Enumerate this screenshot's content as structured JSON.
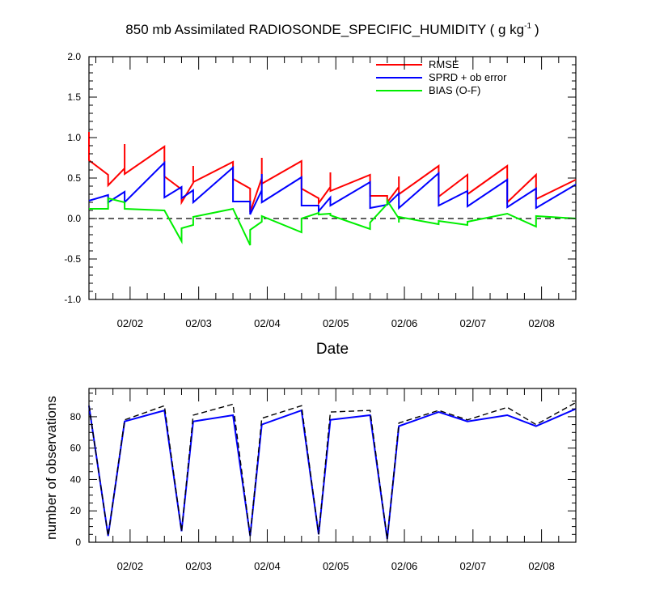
{
  "chart_data": [
    {
      "type": "line",
      "title": "850 mb Assimilated RADIOSONDE_SPECIFIC_HUMIDITY ( g kg",
      "title_unit_exponent": "-1",
      "title_close": ")",
      "xlabel": "Date",
      "ylabel": "",
      "xlim": [
        1.4,
        8.5
      ],
      "ylim": [
        -1.0,
        2.0
      ],
      "xticks": [
        {
          "x": 2,
          "label": "02/02"
        },
        {
          "x": 3,
          "label": "02/03"
        },
        {
          "x": 4,
          "label": "02/04"
        },
        {
          "x": 5,
          "label": "02/05"
        },
        {
          "x": 6,
          "label": "02/06"
        },
        {
          "x": 7,
          "label": "02/07"
        },
        {
          "x": 8,
          "label": "02/08"
        }
      ],
      "yticks": [
        {
          "y": -1.0,
          "label": "-1.0"
        },
        {
          "y": -0.5,
          "label": "-0.5"
        },
        {
          "y": 0.0,
          "label": "0.0"
        },
        {
          "y": 0.5,
          "label": "0.5"
        },
        {
          "y": 1.0,
          "label": "1.0"
        },
        {
          "y": 1.5,
          "label": "1.5"
        },
        {
          "y": 2.0,
          "label": "2.0"
        }
      ],
      "legend_position": "top-right",
      "zero_line": true,
      "series": [
        {
          "name": "RMSE",
          "color": "#ff0000",
          "points": [
            [
              1.4,
              1.07
            ],
            [
              1.4,
              0.72
            ],
            [
              1.68,
              0.54
            ],
            [
              1.68,
              0.41
            ],
            [
              1.92,
              0.62
            ],
            [
              1.92,
              0.92
            ],
            [
              1.92,
              0.55
            ],
            [
              2.5,
              0.89
            ],
            [
              2.5,
              0.52
            ],
            [
              2.75,
              0.36
            ],
            [
              2.75,
              0.2
            ],
            [
              2.92,
              0.44
            ],
            [
              2.92,
              0.65
            ],
            [
              2.92,
              0.45
            ],
            [
              3.5,
              0.7
            ],
            [
              3.5,
              0.49
            ],
            [
              3.75,
              0.37
            ],
            [
              3.75,
              0.08
            ],
            [
              3.92,
              0.5
            ],
            [
              3.92,
              0.75
            ],
            [
              3.92,
              0.43
            ],
            [
              4.5,
              0.71
            ],
            [
              4.5,
              0.37
            ],
            [
              4.75,
              0.25
            ],
            [
              4.75,
              0.19
            ],
            [
              4.92,
              0.39
            ],
            [
              4.92,
              0.57
            ],
            [
              4.92,
              0.34
            ],
            [
              5.5,
              0.54
            ],
            [
              5.5,
              0.28
            ],
            [
              5.75,
              0.28
            ],
            [
              5.75,
              0.2
            ],
            [
              5.92,
              0.39
            ],
            [
              5.92,
              0.52
            ],
            [
              5.92,
              0.3
            ],
            [
              6.5,
              0.65
            ],
            [
              6.5,
              0.27
            ],
            [
              6.92,
              0.54
            ],
            [
              6.92,
              0.3
            ],
            [
              7.5,
              0.65
            ],
            [
              7.5,
              0.2
            ],
            [
              7.92,
              0.54
            ],
            [
              7.92,
              0.24
            ],
            [
              8.5,
              0.48
            ]
          ]
        },
        {
          "name": "SPRD + ob error",
          "color": "#0000ff",
          "points": [
            [
              1.4,
              0.22
            ],
            [
              1.68,
              0.29
            ],
            [
              1.68,
              0.2
            ],
            [
              1.92,
              0.33
            ],
            [
              1.92,
              0.2
            ],
            [
              2.5,
              0.69
            ],
            [
              2.5,
              0.26
            ],
            [
              2.75,
              0.39
            ],
            [
              2.75,
              0.25
            ],
            [
              2.92,
              0.35
            ],
            [
              2.92,
              0.2
            ],
            [
              3.5,
              0.63
            ],
            [
              3.5,
              0.21
            ],
            [
              3.75,
              0.21
            ],
            [
              3.75,
              0.05
            ],
            [
              3.92,
              0.35
            ],
            [
              3.92,
              0.55
            ],
            [
              3.92,
              0.2
            ],
            [
              4.5,
              0.51
            ],
            [
              4.5,
              0.16
            ],
            [
              4.75,
              0.16
            ],
            [
              4.75,
              0.09
            ],
            [
              4.92,
              0.26
            ],
            [
              4.92,
              0.16
            ],
            [
              5.5,
              0.45
            ],
            [
              5.5,
              0.13
            ],
            [
              5.75,
              0.17
            ],
            [
              5.92,
              0.31
            ],
            [
              5.92,
              0.13
            ],
            [
              6.5,
              0.56
            ],
            [
              6.5,
              0.16
            ],
            [
              6.92,
              0.34
            ],
            [
              6.92,
              0.15
            ],
            [
              7.5,
              0.48
            ],
            [
              7.5,
              0.14
            ],
            [
              7.92,
              0.37
            ],
            [
              7.92,
              0.13
            ],
            [
              8.5,
              0.42
            ]
          ]
        },
        {
          "name": "BIAS (O-F)",
          "color": "#00ee00",
          "points": [
            [
              1.4,
              0.12
            ],
            [
              1.68,
              0.12
            ],
            [
              1.68,
              0.25
            ],
            [
              1.92,
              0.2
            ],
            [
              1.92,
              0.12
            ],
            [
              2.5,
              0.1
            ],
            [
              2.75,
              -0.28
            ],
            [
              2.75,
              -0.12
            ],
            [
              2.92,
              -0.08
            ],
            [
              2.92,
              0.02
            ],
            [
              3.5,
              0.12
            ],
            [
              3.75,
              -0.33
            ],
            [
              3.75,
              -0.14
            ],
            [
              3.92,
              -0.04
            ],
            [
              3.92,
              0.03
            ],
            [
              4.5,
              -0.17
            ],
            [
              4.5,
              0.0
            ],
            [
              4.75,
              0.07
            ],
            [
              4.75,
              0.05
            ],
            [
              4.92,
              0.06
            ],
            [
              4.92,
              0.04
            ],
            [
              5.5,
              -0.13
            ],
            [
              5.5,
              -0.05
            ],
            [
              5.75,
              0.18
            ],
            [
              5.75,
              0.22
            ],
            [
              5.92,
              0.0
            ],
            [
              5.92,
              -0.05
            ],
            [
              5.92,
              0.02
            ],
            [
              6.5,
              -0.07
            ],
            [
              6.5,
              -0.03
            ],
            [
              6.92,
              -0.08
            ],
            [
              6.92,
              -0.04
            ],
            [
              7.5,
              0.06
            ],
            [
              7.92,
              -0.1
            ],
            [
              7.92,
              0.03
            ],
            [
              8.5,
              0.0
            ]
          ]
        }
      ]
    },
    {
      "type": "line",
      "title": "",
      "xlabel": "",
      "ylabel": "number of observations",
      "xlim": [
        1.4,
        8.5
      ],
      "ylim": [
        0,
        98
      ],
      "xticks": [
        {
          "x": 2,
          "label": "02/02"
        },
        {
          "x": 3,
          "label": "02/03"
        },
        {
          "x": 4,
          "label": "02/04"
        },
        {
          "x": 5,
          "label": "02/05"
        },
        {
          "x": 6,
          "label": "02/06"
        },
        {
          "x": 7,
          "label": "02/07"
        },
        {
          "x": 8,
          "label": "02/08"
        }
      ],
      "yticks": [
        {
          "y": 0,
          "label": "0"
        },
        {
          "y": 20,
          "label": "20"
        },
        {
          "y": 40,
          "label": "40"
        },
        {
          "y": 60,
          "label": "60"
        },
        {
          "y": 80,
          "label": "80"
        }
      ],
      "series": [
        {
          "color": "#0000ff",
          "dashed": false,
          "points": [
            [
              1.4,
              87
            ],
            [
              1.68,
              4
            ],
            [
              1.92,
              77
            ],
            [
              2.5,
              84
            ],
            [
              2.75,
              7
            ],
            [
              2.92,
              77
            ],
            [
              3.5,
              81
            ],
            [
              3.75,
              4
            ],
            [
              3.92,
              75
            ],
            [
              4.5,
              84
            ],
            [
              4.75,
              5
            ],
            [
              4.92,
              78
            ],
            [
              5.5,
              81
            ],
            [
              5.75,
              2
            ],
            [
              5.92,
              74
            ],
            [
              6.5,
              83
            ],
            [
              6.92,
              77
            ],
            [
              7.5,
              81
            ],
            [
              7.92,
              74
            ],
            [
              8.5,
              85
            ]
          ]
        },
        {
          "color": "#000000",
          "dashed": true,
          "points": [
            [
              1.4,
              87
            ],
            [
              1.68,
              4
            ],
            [
              1.92,
              78
            ],
            [
              2.5,
              87
            ],
            [
              2.75,
              7
            ],
            [
              2.92,
              81
            ],
            [
              3.5,
              88
            ],
            [
              3.75,
              4
            ],
            [
              3.92,
              79
            ],
            [
              4.5,
              87
            ],
            [
              4.75,
              5
            ],
            [
              4.92,
              83
            ],
            [
              5.5,
              84
            ],
            [
              5.75,
              2
            ],
            [
              5.92,
              76
            ],
            [
              6.5,
              84
            ],
            [
              6.92,
              78
            ],
            [
              7.5,
              86
            ],
            [
              7.92,
              75
            ],
            [
              8.5,
              89
            ]
          ]
        }
      ]
    }
  ]
}
